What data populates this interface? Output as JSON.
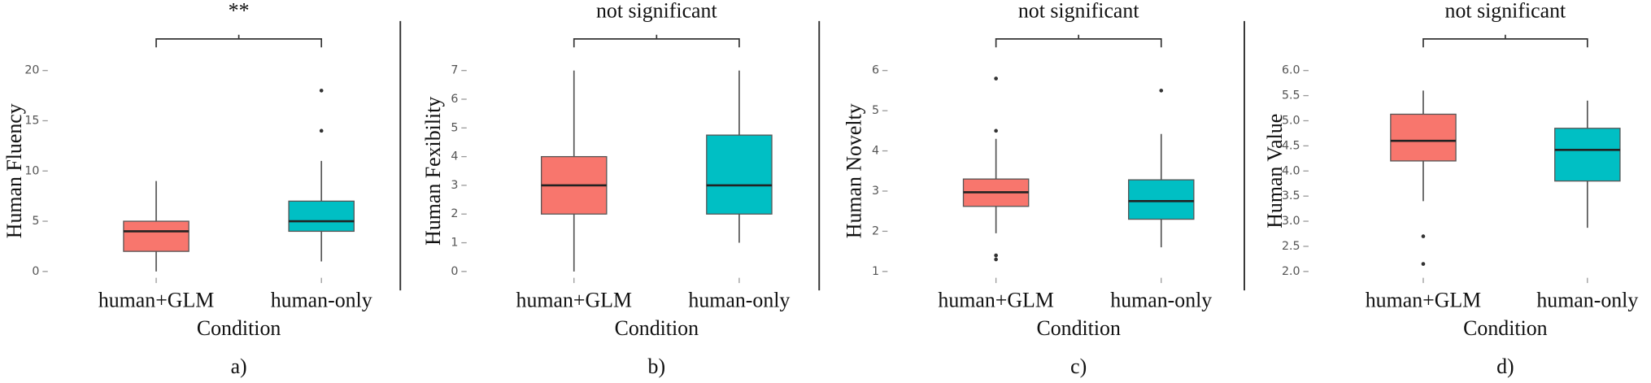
{
  "chart_data": [
    {
      "type": "box",
      "title": "**",
      "ylabel": "Human Fluency",
      "xlabel": "Condition",
      "caption": "a)",
      "categories": [
        "human+GLM",
        "human-only"
      ],
      "colors": [
        "#f8766d",
        "#00bfc4"
      ],
      "ylim": [
        0,
        20
      ],
      "yticks": [
        0,
        5,
        10,
        15,
        20
      ],
      "boxes": [
        {
          "min": 0,
          "q1": 2,
          "median": 4,
          "q3": 5,
          "max": 9,
          "outliers": []
        },
        {
          "min": 1,
          "q1": 4,
          "median": 5,
          "q3": 7,
          "max": 11,
          "outliers": [
            14,
            18
          ]
        }
      ]
    },
    {
      "type": "box",
      "title": "not significant",
      "ylabel": "Human Fexibility",
      "xlabel": "Condition",
      "caption": "b)",
      "categories": [
        "human+GLM",
        "human-only"
      ],
      "colors": [
        "#f8766d",
        "#00bfc4"
      ],
      "ylim": [
        0,
        7
      ],
      "yticks": [
        0,
        1,
        2,
        3,
        4,
        5,
        6,
        7
      ],
      "boxes": [
        {
          "min": 0,
          "q1": 2,
          "median": 3,
          "q3": 4,
          "max": 7,
          "outliers": []
        },
        {
          "min": 1,
          "q1": 2,
          "median": 3,
          "q3": 4.75,
          "max": 7,
          "outliers": []
        }
      ]
    },
    {
      "type": "box",
      "title": "not significant",
      "ylabel": "Human Novelty",
      "xlabel": "Condition",
      "caption": "c)",
      "categories": [
        "human+GLM",
        "human-only"
      ],
      "colors": [
        "#f8766d",
        "#00bfc4"
      ],
      "ylim": [
        1,
        6
      ],
      "yticks": [
        1,
        2,
        3,
        4,
        5,
        6
      ],
      "boxes": [
        {
          "min": 1.95,
          "q1": 2.62,
          "median": 2.97,
          "q3": 3.3,
          "max": 4.3,
          "outliers": [
            5.8,
            4.5,
            1.4,
            1.3
          ]
        },
        {
          "min": 1.6,
          "q1": 2.3,
          "median": 2.75,
          "q3": 3.28,
          "max": 4.42,
          "outliers": [
            5.5
          ]
        }
      ]
    },
    {
      "type": "box",
      "title": "not significant",
      "ylabel": "Human Value",
      "xlabel": "Condition",
      "caption": "d)",
      "categories": [
        "human+GLM",
        "human-only"
      ],
      "colors": [
        "#f8766d",
        "#00bfc4"
      ],
      "ylim": [
        2,
        6
      ],
      "yticks": [
        {
          "value": 2,
          "label": "2.0"
        },
        2.5,
        {
          "value": 3,
          "label": "3.0"
        },
        3.5,
        {
          "value": 4,
          "label": "4.0"
        },
        4.5,
        {
          "value": 5,
          "label": "5.0"
        },
        5.5,
        {
          "value": 6,
          "label": "6.0"
        }
      ],
      "boxes": [
        {
          "min": 3.4,
          "q1": 4.2,
          "median": 4.6,
          "q3": 5.13,
          "max": 5.6,
          "outliers": [
            2.7,
            2.15
          ]
        },
        {
          "min": 2.87,
          "q1": 3.8,
          "median": 4.42,
          "q3": 4.85,
          "max": 5.4,
          "outliers": []
        }
      ]
    }
  ]
}
